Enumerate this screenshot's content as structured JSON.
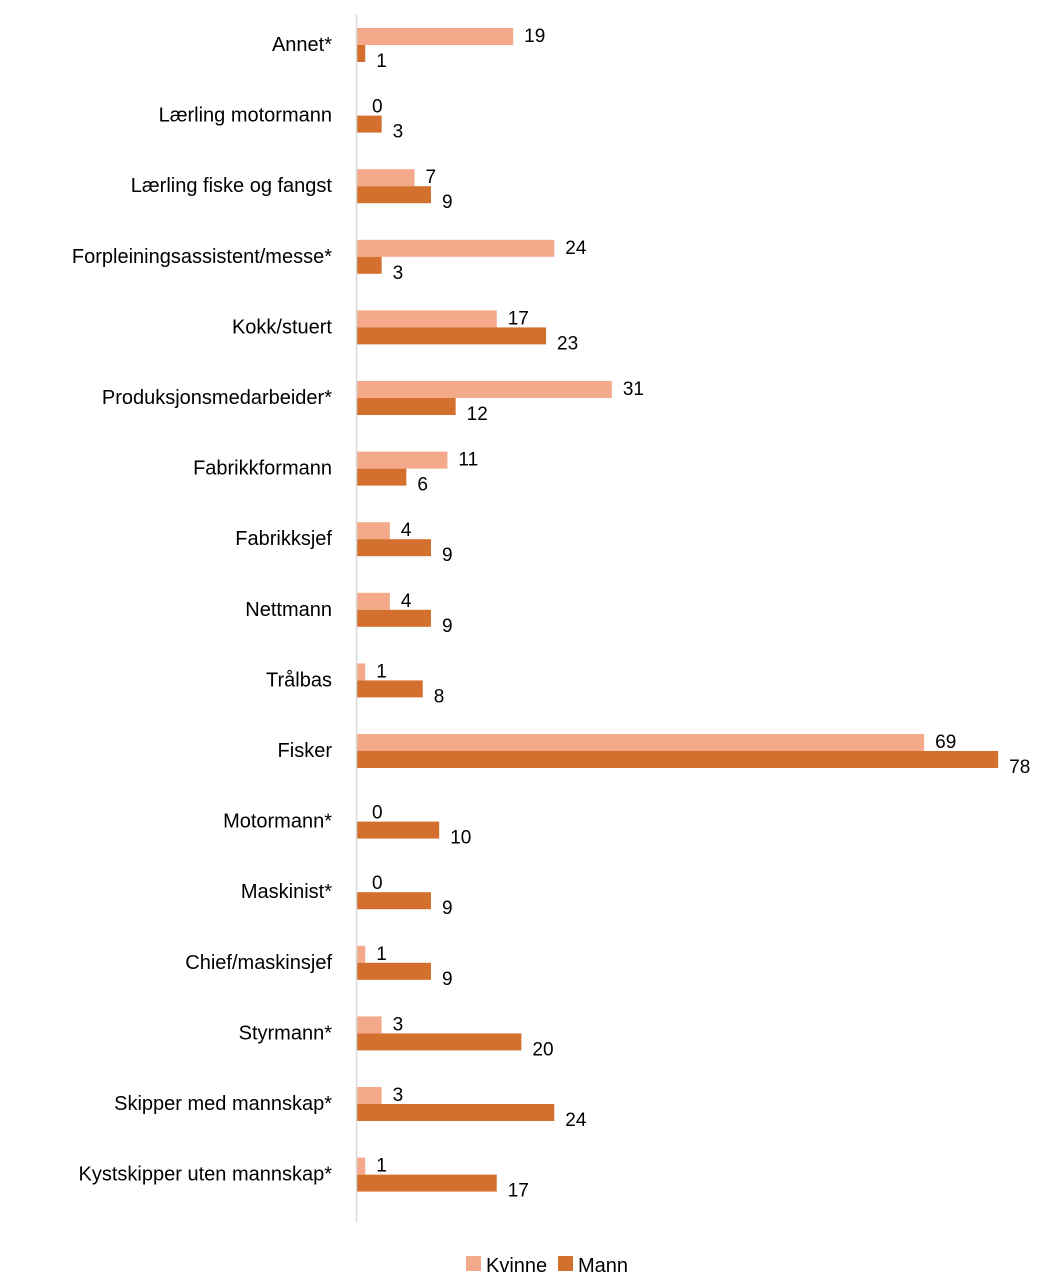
{
  "chart_data": {
    "type": "bar",
    "orientation": "horizontal",
    "categories": [
      "Annet*",
      "Lærling motormann",
      "Lærling fiske og fangst",
      "Forpleiningsassistent/messe*",
      "Kokk/stuert",
      "Produksjonsmedarbeider*",
      "Fabrikkformann",
      "Fabrikksjef",
      "Nettmann",
      "Trålbas",
      "Fisker",
      "Motormann*",
      "Maskinist*",
      "Chief/maskinsjef",
      "Styrmann*",
      "Skipper med mannskap*",
      "Kystskipper uten mannskap*"
    ],
    "series": [
      {
        "name": "Kvinne",
        "color": "#f4a98a",
        "values": [
          19,
          0,
          7,
          24,
          17,
          31,
          11,
          4,
          4,
          1,
          69,
          0,
          0,
          1,
          3,
          3,
          1
        ]
      },
      {
        "name": "Mann",
        "color": "#d4702e",
        "values": [
          1,
          3,
          9,
          3,
          23,
          12,
          6,
          9,
          9,
          8,
          78,
          10,
          9,
          9,
          20,
          24,
          17
        ]
      }
    ],
    "xlim": [
      0,
      78
    ],
    "xlabel": "",
    "ylabel": "",
    "title": "",
    "grid": false,
    "legend_position": "bottom"
  },
  "legend": {
    "items": [
      {
        "label": "Kvinne",
        "color": "#f4a98a"
      },
      {
        "label": "Mann",
        "color": "#d4702e"
      }
    ]
  },
  "colors": {
    "axis": "#d9d9d9",
    "text": "#000000"
  }
}
